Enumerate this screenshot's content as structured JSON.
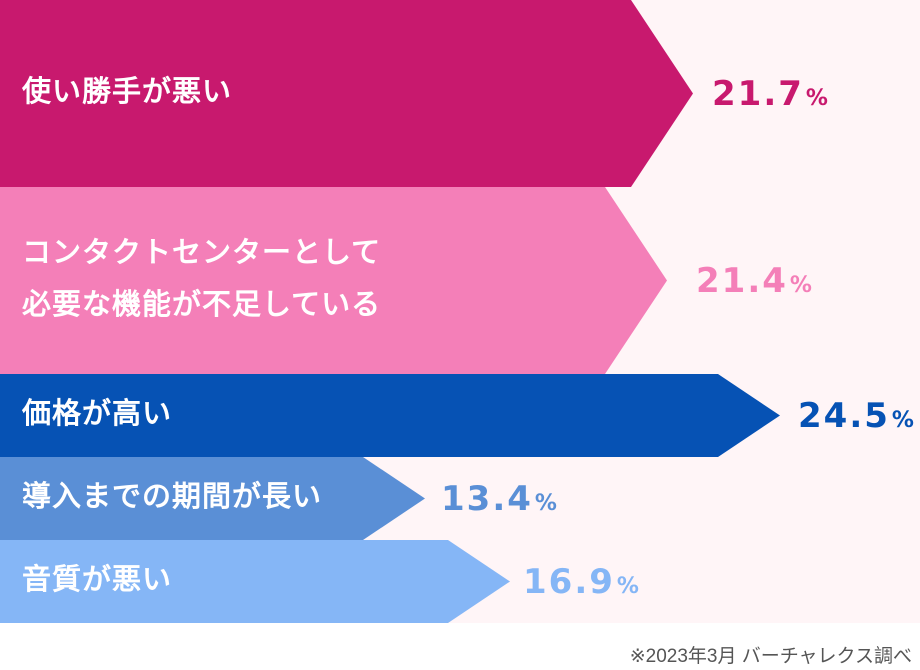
{
  "chart_data": {
    "type": "bar",
    "orientation": "horizontal",
    "unit": "%",
    "categories": [
      [
        "使い勝手が悪い"
      ],
      [
        "コンタクトセンターとして",
        "必要な機能が不足している"
      ],
      [
        "価格が高い"
      ],
      [
        "導入までの期間が長い"
      ],
      [
        "音質が悪い"
      ]
    ],
    "values": [
      21.7,
      21.4,
      24.5,
      13.4,
      16.9
    ],
    "colors": [
      "#c8196e",
      "#f47fb8",
      "#0652b4",
      "#5a8fd6",
      "#85b6f6"
    ],
    "background": "#fff5f7",
    "grid": false,
    "legend": "none"
  },
  "footnote": "※2023年3月 バーチャレクス調べ"
}
